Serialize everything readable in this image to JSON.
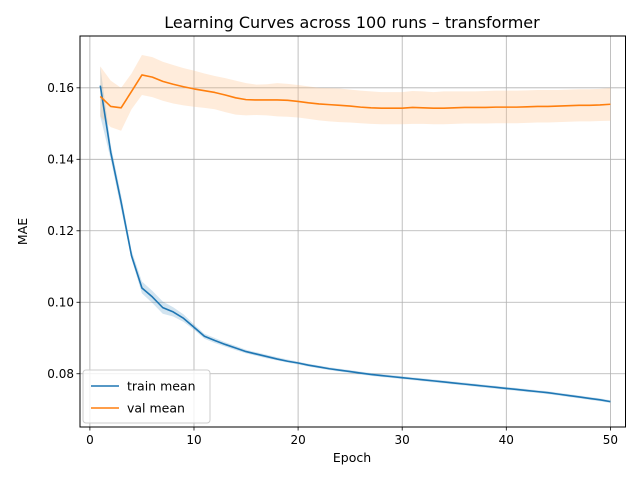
{
  "chart_data": {
    "type": "line",
    "title": "Learning Curves across 100 runs – transformer",
    "xlabel": "Epoch",
    "ylabel": "MAE",
    "xlim": [
      -0.95,
      51.45
    ],
    "ylim": [
      0.0651,
      0.1745
    ],
    "xticks": [
      0,
      10,
      20,
      30,
      40,
      50
    ],
    "xtick_labels": [
      "0",
      "10",
      "20",
      "30",
      "40",
      "50"
    ],
    "yticks": [
      0.08,
      0.1,
      0.12,
      0.14,
      0.16
    ],
    "ytick_labels": [
      "0.08",
      "0.10",
      "0.12",
      "0.14",
      "0.16"
    ],
    "grid": true,
    "legend_placement": "lower-left",
    "x": [
      1,
      2,
      3,
      4,
      5,
      6,
      7,
      8,
      9,
      10,
      11,
      12,
      13,
      14,
      15,
      16,
      17,
      18,
      19,
      20,
      21,
      22,
      23,
      24,
      25,
      26,
      27,
      28,
      29,
      30,
      31,
      32,
      33,
      34,
      35,
      36,
      37,
      38,
      39,
      40,
      41,
      42,
      43,
      44,
      45,
      46,
      47,
      48,
      49,
      50
    ],
    "series": [
      {
        "name": "train mean",
        "color": "#1f77b4",
        "band_color": "#1f77b4",
        "values": [
          0.1606,
          0.142,
          0.128,
          0.113,
          0.104,
          0.1015,
          0.0985,
          0.0973,
          0.0955,
          0.093,
          0.0905,
          0.0893,
          0.0882,
          0.0872,
          0.0862,
          0.0855,
          0.0848,
          0.0841,
          0.0835,
          0.083,
          0.0824,
          0.0819,
          0.0814,
          0.081,
          0.0806,
          0.0802,
          0.0798,
          0.0795,
          0.0792,
          0.0789,
          0.0786,
          0.0783,
          0.078,
          0.0777,
          0.0774,
          0.0771,
          0.0768,
          0.0765,
          0.0762,
          0.0759,
          0.0756,
          0.0753,
          0.075,
          0.0747,
          0.0743,
          0.0739,
          0.0735,
          0.0731,
          0.0727,
          0.0722
        ],
        "band_lower": [
          0.152,
          0.14,
          0.126,
          0.112,
          0.1025,
          0.0998,
          0.0968,
          0.096,
          0.0945,
          0.0923,
          0.0898,
          0.0886,
          0.0876,
          0.0866,
          0.0857,
          0.085,
          0.0843,
          0.0837,
          0.0831,
          0.0826,
          0.082,
          0.0815,
          0.081,
          0.0806,
          0.0802,
          0.0798,
          0.0794,
          0.0791,
          0.0788,
          0.0785,
          0.0782,
          0.0779,
          0.0776,
          0.0773,
          0.077,
          0.0767,
          0.0764,
          0.0761,
          0.0758,
          0.0755,
          0.0752,
          0.0749,
          0.0746,
          0.0743,
          0.0739,
          0.0735,
          0.0731,
          0.0727,
          0.0723,
          0.0718
        ],
        "band_upper": [
          0.166,
          0.144,
          0.13,
          0.1145,
          0.1058,
          0.1032,
          0.1002,
          0.0986,
          0.0966,
          0.0938,
          0.0912,
          0.09,
          0.0888,
          0.0878,
          0.0867,
          0.086,
          0.0853,
          0.0846,
          0.084,
          0.0834,
          0.0828,
          0.0823,
          0.0818,
          0.0814,
          0.081,
          0.0806,
          0.0802,
          0.0799,
          0.0796,
          0.0793,
          0.079,
          0.0787,
          0.0784,
          0.0781,
          0.0778,
          0.0775,
          0.0772,
          0.0769,
          0.0766,
          0.0763,
          0.076,
          0.0757,
          0.0754,
          0.0751,
          0.0747,
          0.0743,
          0.0739,
          0.0735,
          0.0731,
          0.0726
        ]
      },
      {
        "name": "val mean",
        "color": "#ff7f0e",
        "band_color": "#ffbf87",
        "values": [
          0.1576,
          0.1548,
          0.1544,
          0.159,
          0.1636,
          0.163,
          0.1618,
          0.161,
          0.1603,
          0.1597,
          0.1592,
          0.1587,
          0.158,
          0.1572,
          0.1567,
          0.1566,
          0.1566,
          0.1566,
          0.1565,
          0.1562,
          0.1558,
          0.1555,
          0.1553,
          0.1551,
          0.1549,
          0.1546,
          0.1544,
          0.1543,
          0.1543,
          0.1543,
          0.1545,
          0.1544,
          0.1543,
          0.1543,
          0.1544,
          0.1545,
          0.1545,
          0.1545,
          0.1546,
          0.1546,
          0.1546,
          0.1547,
          0.1548,
          0.1548,
          0.1549,
          0.155,
          0.1551,
          0.1551,
          0.1552,
          0.1554
        ],
        "band_lower": [
          0.152,
          0.149,
          0.148,
          0.154,
          0.158,
          0.1574,
          0.1564,
          0.1556,
          0.1551,
          0.1547,
          0.1544,
          0.154,
          0.1532,
          0.1525,
          0.1523,
          0.1524,
          0.1523,
          0.152,
          0.1519,
          0.1517,
          0.1513,
          0.1509,
          0.1506,
          0.1504,
          0.1503,
          0.1501,
          0.1499,
          0.1498,
          0.1498,
          0.1498,
          0.1499,
          0.1499,
          0.1498,
          0.1498,
          0.1499,
          0.15,
          0.15,
          0.15,
          0.1501,
          0.1501,
          0.1501,
          0.1502,
          0.1503,
          0.1503,
          0.1504,
          0.1505,
          0.1506,
          0.1506,
          0.1507,
          0.1508
        ],
        "band_upper": [
          0.166,
          0.162,
          0.16,
          0.164,
          0.1692,
          0.1686,
          0.1673,
          0.1664,
          0.1655,
          0.1648,
          0.164,
          0.1633,
          0.1627,
          0.162,
          0.1613,
          0.1609,
          0.161,
          0.1613,
          0.1611,
          0.1608,
          0.1604,
          0.16,
          0.1599,
          0.1598,
          0.1595,
          0.1592,
          0.159,
          0.1588,
          0.1588,
          0.1588,
          0.1591,
          0.159,
          0.1588,
          0.159,
          0.159,
          0.159,
          0.159,
          0.1591,
          0.1592,
          0.1592,
          0.1592,
          0.1593,
          0.1594,
          0.1594,
          0.1594,
          0.1595,
          0.1596,
          0.1596,
          0.1597,
          0.16
        ]
      }
    ]
  }
}
